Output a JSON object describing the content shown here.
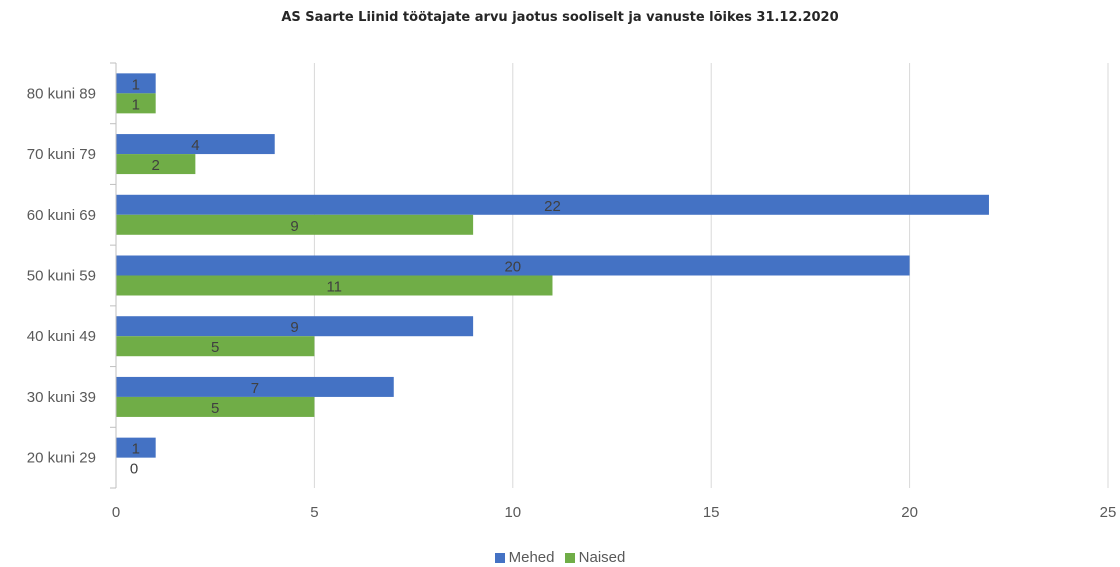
{
  "chart_data": {
    "type": "bar",
    "orientation": "horizontal",
    "title": "AS Saarte Liinid töötajate arvu jaotus sooliselt ja vanuste lõikes 31.12.2020",
    "xlabel": "",
    "ylabel": "",
    "categories": [
      "20 kuni 29",
      "30 kuni 39",
      "40 kuni 49",
      "50 kuni 59",
      "60 kuni 69",
      "70 kuni 79",
      "80 kuni 89"
    ],
    "series": [
      {
        "name": "Mehed",
        "values": [
          1,
          7,
          9,
          20,
          22,
          4,
          1
        ],
        "color": "#4472C4"
      },
      {
        "name": "Naised",
        "values": [
          0,
          5,
          5,
          11,
          9,
          2,
          1
        ],
        "color": "#70AD47"
      }
    ],
    "xlim": [
      0,
      25
    ],
    "x_ticks": [
      "0",
      "5",
      "10",
      "15",
      "20",
      "25"
    ],
    "grid": "vertical",
    "legend_position": "bottom",
    "data_labels": true
  }
}
